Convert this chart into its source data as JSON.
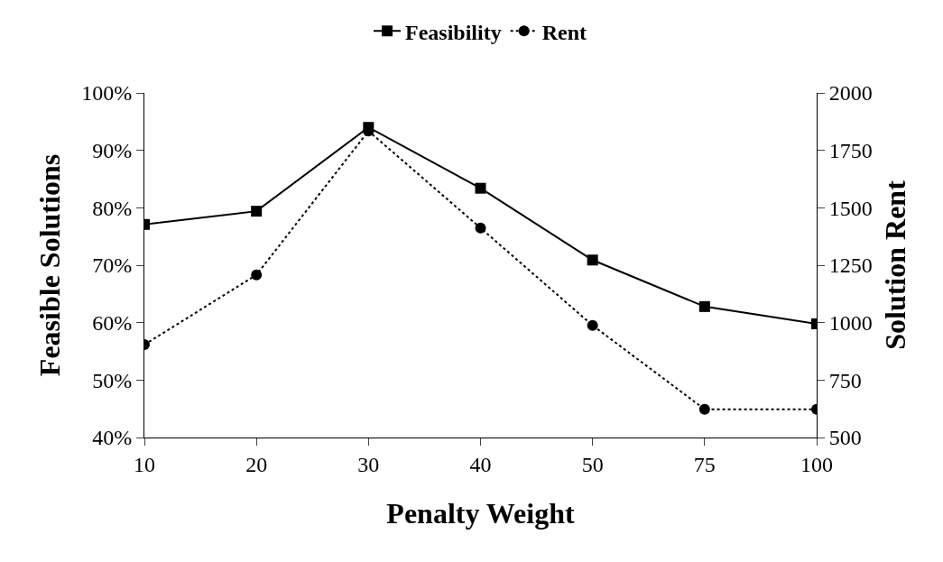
{
  "chart_data": {
    "type": "line",
    "xlabel": "Penalty Weight",
    "ylabel": "Feasible Solutions",
    "y2label": "Solution Rent",
    "categories": [
      "10",
      "20",
      "30",
      "40",
      "50",
      "75",
      "100"
    ],
    "series": [
      {
        "name": "Feasibility",
        "color": "#000000",
        "marker": "square",
        "line_style": "solid",
        "values": [
          77.1,
          79.4,
          94,
          83.4,
          70.9,
          62.8,
          59.8
        ]
      },
      {
        "name": "Rent",
        "color": "#000000",
        "marker": "circle",
        "line_style": "dotted",
        "axis": "y2",
        "values": [
          904,
          1208,
          1834,
          1412,
          988,
          623,
          623
        ]
      }
    ],
    "ylim": [
      40,
      100
    ],
    "yticks": [
      {
        "value": 40,
        "label": "40%"
      },
      {
        "value": 50,
        "label": "50%"
      },
      {
        "value": 60,
        "label": "60%"
      },
      {
        "value": 70,
        "label": "70%"
      },
      {
        "value": 80,
        "label": "80%"
      },
      {
        "value": 90,
        "label": "90%"
      },
      {
        "value": 100,
        "label": "100%"
      }
    ],
    "y2lim": [
      500,
      2000
    ],
    "y2ticks": [
      500,
      750,
      1000,
      1250,
      1500,
      1750,
      2000
    ],
    "grid": false,
    "legend": "top"
  }
}
